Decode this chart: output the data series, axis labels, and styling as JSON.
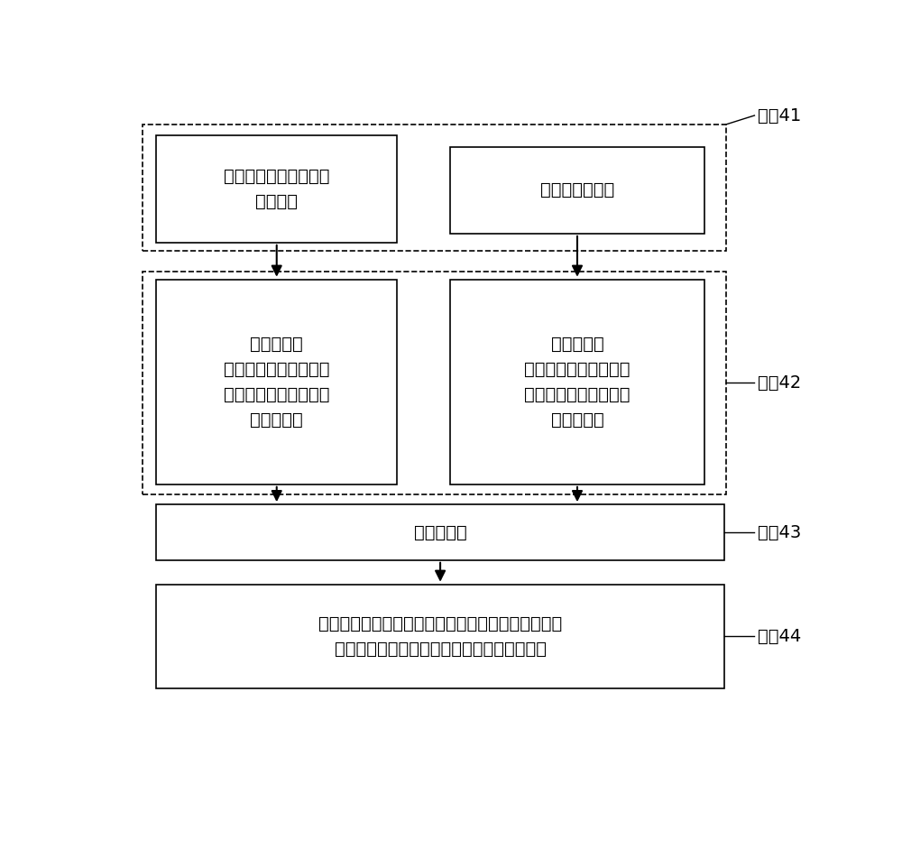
{
  "bg_color": "#ffffff",
  "text_color": "#000000",
  "box_edge_color": "#000000",
  "step_labels": [
    "步骤41",
    "步骤42",
    "步骤43",
    "步骤44"
  ],
  "box1_text": "含有动车组撒沙管的无\n噪声图像",
  "box2_text": "撒沙管模板图像",
  "box3_left_text": "梯度处理、\n拉普拉斯变换和小波变\n换，从变换后的图像上\n提取特征点",
  "box3_right_text": "梯度处理、\n拉普拉斯变换和小波变\n换，从变换后的图像上\n提取特征点",
  "box4_text": "特征点匹配",
  "box5_text": "得到匹配矩阵，由匹配矩阵计算待识别图像中撒沙管\n接头位置，根据所述位置得到撒沙管接头图像"
}
